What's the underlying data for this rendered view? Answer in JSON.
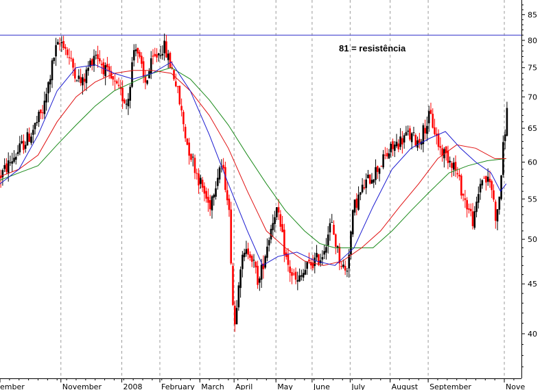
{
  "chart_data": {
    "type": "candlestick",
    "title": "",
    "xlabel": "",
    "ylabel": "",
    "y_axis_position": "right",
    "y_scale": "log",
    "ylim": [
      36,
      88
    ],
    "y_ticks": [
      40,
      45,
      50,
      55,
      60,
      65,
      70,
      75,
      80,
      85
    ],
    "grid": "vertical-dashed",
    "x_tick_labels": [
      "ember",
      "November",
      "2008",
      "February",
      "March",
      "April",
      "May",
      "June",
      "July",
      "August",
      "September",
      "Nove"
    ],
    "x_ticks_rel": [
      0,
      1.6,
      3.2,
      4.2,
      5.25,
      6.15,
      7.25,
      8.2,
      9.2,
      10.25,
      11.25,
      13.25
    ],
    "x_range_rel": [
      0,
      13.7
    ],
    "resistance": {
      "value": 81,
      "color": "#2b2bc8",
      "label": "81 = resistência"
    },
    "colors": {
      "up": "#000000",
      "down": "#ff0000",
      "ma_short": "#1a1ad0",
      "ma_mid": "#e01010",
      "ma_long": "#1a8a1a"
    },
    "price_points": [
      [
        0,
        58
      ],
      [
        0.4,
        61
      ],
      [
        0.8,
        64
      ],
      [
        1.15,
        68
      ],
      [
        1.45,
        78
      ],
      [
        1.65,
        80
      ],
      [
        1.85,
        76
      ],
      [
        2.15,
        72
      ],
      [
        2.5,
        78
      ],
      [
        2.8,
        74
      ],
      [
        3.1,
        71
      ],
      [
        3.35,
        69
      ],
      [
        3.55,
        80
      ],
      [
        3.8,
        72
      ],
      [
        4.0,
        76
      ],
      [
        4.3,
        79
      ],
      [
        4.6,
        73
      ],
      [
        4.9,
        63
      ],
      [
        5.2,
        58
      ],
      [
        5.5,
        54
      ],
      [
        5.8,
        60
      ],
      [
        6.0,
        55
      ],
      [
        6.15,
        40
      ],
      [
        6.3,
        47
      ],
      [
        6.55,
        49
      ],
      [
        6.8,
        45
      ],
      [
        7.05,
        50
      ],
      [
        7.25,
        54
      ],
      [
        7.55,
        47
      ],
      [
        7.8,
        45
      ],
      [
        8.1,
        47
      ],
      [
        8.45,
        48
      ],
      [
        8.7,
        52
      ],
      [
        8.9,
        48
      ],
      [
        9.1,
        46
      ],
      [
        9.3,
        54
      ],
      [
        9.6,
        57
      ],
      [
        9.9,
        59
      ],
      [
        10.3,
        62
      ],
      [
        10.7,
        64
      ],
      [
        11.0,
        63
      ],
      [
        11.3,
        67
      ],
      [
        11.55,
        62
      ],
      [
        11.9,
        60
      ],
      [
        12.2,
        55
      ],
      [
        12.45,
        52
      ],
      [
        12.65,
        58
      ],
      [
        12.9,
        57
      ],
      [
        13.05,
        52
      ],
      [
        13.15,
        57
      ],
      [
        13.25,
        64
      ],
      [
        13.35,
        69
      ]
    ],
    "ma_short_points": [
      [
        0,
        57
      ],
      [
        0.5,
        59
      ],
      [
        1.0,
        64
      ],
      [
        1.5,
        71
      ],
      [
        2.0,
        75
      ],
      [
        2.5,
        75.5
      ],
      [
        3.0,
        74
      ],
      [
        3.5,
        73
      ],
      [
        4.0,
        74
      ],
      [
        4.5,
        76
      ],
      [
        5.0,
        71
      ],
      [
        5.5,
        64
      ],
      [
        6.0,
        57
      ],
      [
        6.5,
        51
      ],
      [
        6.9,
        47
      ],
      [
        7.3,
        48
      ],
      [
        7.8,
        48.5
      ],
      [
        8.3,
        47.5
      ],
      [
        8.8,
        47
      ],
      [
        9.3,
        49
      ],
      [
        9.8,
        54
      ],
      [
        10.3,
        59
      ],
      [
        10.8,
        62
      ],
      [
        11.3,
        63.5
      ],
      [
        11.7,
        64.5
      ],
      [
        12.1,
        62
      ],
      [
        12.5,
        60
      ],
      [
        12.9,
        58.5
      ],
      [
        13.15,
        56
      ],
      [
        13.3,
        57
      ]
    ],
    "ma_mid_points": [
      [
        0,
        58
      ],
      [
        0.5,
        59
      ],
      [
        1.0,
        61
      ],
      [
        1.5,
        66
      ],
      [
        2.0,
        70
      ],
      [
        2.5,
        72.5
      ],
      [
        3.0,
        74
      ],
      [
        3.5,
        74.5
      ],
      [
        4.0,
        74.5
      ],
      [
        4.5,
        74
      ],
      [
        5.0,
        71
      ],
      [
        5.5,
        67
      ],
      [
        6.0,
        62
      ],
      [
        6.5,
        56
      ],
      [
        7.0,
        51
      ],
      [
        7.5,
        49
      ],
      [
        8.0,
        47.5
      ],
      [
        8.5,
        47
      ],
      [
        9.0,
        47.5
      ],
      [
        9.5,
        49
      ],
      [
        10.0,
        51
      ],
      [
        10.5,
        54
      ],
      [
        11.0,
        57
      ],
      [
        11.5,
        60.5
      ],
      [
        12.0,
        62.5
      ],
      [
        12.5,
        62
      ],
      [
        13.0,
        60.5
      ],
      [
        13.3,
        60.5
      ]
    ],
    "ma_long_points": [
      [
        0,
        57.5
      ],
      [
        0.5,
        58.5
      ],
      [
        1.0,
        59.5
      ],
      [
        1.5,
        62.5
      ],
      [
        2.0,
        65.5
      ],
      [
        2.5,
        68.5
      ],
      [
        3.0,
        71
      ],
      [
        3.5,
        72.5
      ],
      [
        4.0,
        74
      ],
      [
        4.5,
        75
      ],
      [
        5.0,
        73
      ],
      [
        5.5,
        69.5
      ],
      [
        6.0,
        65.5
      ],
      [
        6.5,
        61
      ],
      [
        7.0,
        57
      ],
      [
        7.5,
        53.5
      ],
      [
        8.0,
        51
      ],
      [
        8.4,
        49.5
      ],
      [
        8.8,
        49
      ],
      [
        9.3,
        49
      ],
      [
        9.8,
        49
      ],
      [
        10.3,
        51
      ],
      [
        10.8,
        53.5
      ],
      [
        11.3,
        56
      ],
      [
        11.8,
        58.5
      ],
      [
        12.3,
        59.5
      ],
      [
        12.8,
        60.2
      ],
      [
        13.3,
        60.5
      ]
    ]
  }
}
